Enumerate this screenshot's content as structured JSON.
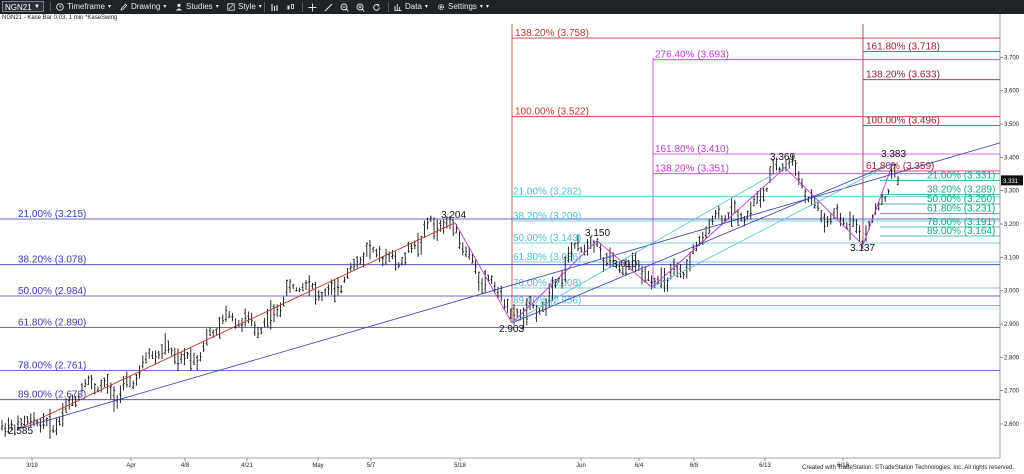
{
  "toolbar": {
    "symbol": "NGN21",
    "timeframe_label": "Timeframe",
    "drawing_label": "Drawing",
    "studies_label": "Studies",
    "style_label": "Style",
    "data_label": "Data",
    "settings_label": "Settings"
  },
  "chart_caption": "NGN21 - Kase Bar 0.03, 1 min  *KaseSwing",
  "footer": "Created with TradeStation. ©TradeStation Technologies, Inc. All rights reserved.",
  "colors": {
    "toolbar_bg": "#1f2328",
    "blue_levels": "#3a3ab8",
    "red_levels": "#c0392b",
    "magenta_levels": "#c03bd0",
    "cyan_levels": "#4fc0d0",
    "teal_levels": "#1aa98c",
    "dark_red_levels": "#a0203a",
    "price_bars": "#111111"
  },
  "chart_data": {
    "type": "line",
    "title": "",
    "price_axis": {
      "ylim": [
        2.56,
        3.8
      ],
      "ticks": [
        2.6,
        2.7,
        2.8,
        2.9,
        3.0,
        3.1,
        3.2,
        3.3,
        3.4,
        3.5,
        3.6,
        3.7
      ],
      "tick_labels": [
        "2.600",
        "2.700",
        "2.800",
        "2.900",
        "3.000",
        "3.100",
        "3.200",
        "3.300",
        "3.400",
        "3.500",
        "3.600",
        "3.700"
      ]
    },
    "date_axis": {
      "labels": [
        "3/19",
        "Apr",
        "4/8",
        "4/21",
        "May",
        "5/7",
        "5/18",
        "Jun",
        "6/4",
        "6/8",
        "6/13",
        "6/18"
      ]
    },
    "last_price": "3.331",
    "swing_labels": [
      {
        "text": "2.585",
        "price": 2.585
      },
      {
        "text": "3.204",
        "price": 3.204
      },
      {
        "text": "2.903",
        "price": 2.903
      },
      {
        "text": "3.150",
        "price": 3.15
      },
      {
        "text": "3.010",
        "price": 3.01
      },
      {
        "text": "3.369",
        "price": 3.369
      },
      {
        "text": "3.137",
        "price": 3.137
      },
      {
        "text": "3.383",
        "price": 3.383
      }
    ],
    "swing_path": [
      {
        "date": "3/19",
        "price": 2.585
      },
      {
        "date": "5/18",
        "price": 3.204
      },
      {
        "date": "5/26",
        "price": 2.903
      },
      {
        "date": "6/1",
        "price": 3.15
      },
      {
        "date": "6/4",
        "price": 3.01
      },
      {
        "date": "6/14",
        "price": 3.369
      },
      {
        "date": "6/18",
        "price": 3.137
      },
      {
        "date": "6/21",
        "price": 3.383
      }
    ],
    "fib_levels": [
      {
        "group": "blue",
        "label": "21.00% (3.215)",
        "price": 3.215
      },
      {
        "group": "blue",
        "label": "38.20% (3.078)",
        "price": 3.078
      },
      {
        "group": "blue",
        "label": "50.00% (2.984)",
        "price": 2.984
      },
      {
        "group": "blue",
        "label": "61.80% (2.890)",
        "price": 2.89
      },
      {
        "group": "blue",
        "label": "78.00% (2.761)",
        "price": 2.761
      },
      {
        "group": "blue",
        "label": "89.00% (2.673)",
        "price": 2.673
      },
      {
        "group": "red",
        "label": "138.20% (3.758)",
        "price": 3.758
      },
      {
        "group": "red",
        "label": "100.00% (3.522)",
        "price": 3.522
      },
      {
        "group": "cyan",
        "label": "21.00% (3.282)",
        "price": 3.282
      },
      {
        "group": "cyan",
        "label": "38.20% (3.209)",
        "price": 3.209
      },
      {
        "group": "cyan",
        "label": "50.00% (3.143)",
        "price": 3.143
      },
      {
        "group": "cyan",
        "label": "61.80% (3.086)",
        "price": 3.086
      },
      {
        "group": "cyan",
        "label": "78.00% (3.008)",
        "price": 3.008
      },
      {
        "group": "cyan",
        "label": "89.00% (2.956)",
        "price": 2.956
      },
      {
        "group": "magenta",
        "label": "276.40% (3.693)",
        "price": 3.693
      },
      {
        "group": "magenta",
        "label": "161.80% (3.410)",
        "price": 3.41
      },
      {
        "group": "magenta",
        "label": "138.20% (3.351)",
        "price": 3.351
      },
      {
        "group": "darkred",
        "label": "161.80% (3.718)",
        "price": 3.718
      },
      {
        "group": "darkred",
        "label": "138.20% (3.633)",
        "price": 3.633
      },
      {
        "group": "darkred",
        "label": "100.00% (3.496)",
        "price": 3.496
      },
      {
        "group": "darkred",
        "label": "61.80% (3.359)",
        "price": 3.359
      },
      {
        "group": "teal",
        "label": "21.00% (3.331)",
        "price": 3.331
      },
      {
        "group": "teal",
        "label": "38.20% (3.289)",
        "price": 3.289
      },
      {
        "group": "teal",
        "label": "50.00% (3.260)",
        "price": 3.26
      },
      {
        "group": "teal",
        "label": "61.80% (3.231)",
        "price": 3.231
      },
      {
        "group": "teal",
        "label": "78.00% (3.191)",
        "price": 3.191
      },
      {
        "group": "teal",
        "label": "89.00% (3.164)",
        "price": 3.164
      }
    ]
  }
}
